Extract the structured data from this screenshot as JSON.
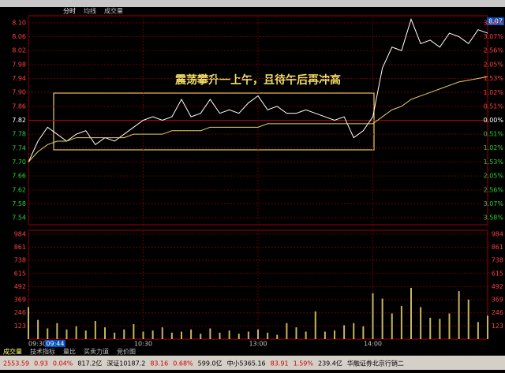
{
  "header": {
    "tabs": [
      "分时",
      "均线",
      "成交量"
    ]
  },
  "chart_data": [
    {
      "type": "line",
      "x": [
        0,
        5,
        10,
        15,
        20,
        25,
        30,
        35,
        40,
        45,
        50,
        55,
        60,
        65,
        70,
        75,
        80,
        85,
        90,
        95,
        100,
        105,
        110,
        115,
        120,
        125,
        130,
        135,
        140,
        145,
        150,
        155,
        160,
        165,
        170,
        175,
        180,
        185,
        190,
        195,
        200,
        205,
        210,
        215,
        220,
        225,
        230,
        235,
        240
      ],
      "series": [
        {
          "color": "#ffffff",
          "values": [
            7.7,
            7.76,
            7.8,
            7.78,
            7.76,
            7.78,
            7.79,
            7.75,
            7.77,
            7.76,
            7.78,
            7.8,
            7.82,
            7.83,
            7.82,
            7.83,
            7.88,
            7.83,
            7.84,
            7.88,
            7.84,
            7.85,
            7.84,
            7.87,
            7.89,
            7.85,
            7.86,
            7.84,
            7.84,
            7.85,
            7.84,
            7.83,
            7.82,
            7.83,
            7.77,
            7.79,
            7.83,
            7.97,
            8.03,
            8.02,
            8.11,
            8.04,
            8.05,
            8.03,
            8.07,
            8.06,
            8.04,
            8.08,
            8.07
          ]
        },
        {
          "color": "#e8d060",
          "values": [
            7.7,
            7.73,
            7.75,
            7.76,
            7.76,
            7.77,
            7.77,
            7.77,
            7.77,
            7.77,
            7.77,
            7.78,
            7.78,
            7.78,
            7.78,
            7.79,
            7.79,
            7.79,
            7.79,
            7.8,
            7.8,
            7.8,
            7.8,
            7.8,
            7.8,
            7.81,
            7.81,
            7.81,
            7.81,
            7.81,
            7.81,
            7.81,
            7.81,
            7.81,
            7.81,
            7.81,
            7.81,
            7.83,
            7.85,
            7.86,
            7.88,
            7.89,
            7.9,
            7.91,
            7.92,
            7.93,
            7.935,
            7.94,
            7.945
          ]
        }
      ],
      "xlim": [
        0,
        240
      ],
      "ylim": [
        7.52,
        8.12
      ],
      "yticks": [
        {
          "value": 8.1,
          "label": "8.10"
        },
        8.06,
        8.02,
        7.98,
        7.94,
        {
          "value": 7.9,
          "label": "7.90"
        },
        7.86,
        7.82,
        7.78,
        7.74,
        {
          "value": 7.7,
          "label": "7.70"
        },
        7.66,
        7.62,
        7.58,
        7.54
      ],
      "base": 7.82,
      "y2lim": [
        -3.84,
        3.84
      ],
      "y2ticks": [
        {
          "value": 3.58,
          "label": "3.58%"
        },
        {
          "value": 3.07,
          "label": "3.07%"
        },
        {
          "value": 2.56,
          "label": "2.56%"
        },
        {
          "value": 2.05,
          "label": "2.05%"
        },
        {
          "value": 1.53,
          "label": "1.53%"
        },
        {
          "value": 1.02,
          "label": "1.02%"
        },
        {
          "value": 0.51,
          "label": "0.51%"
        },
        {
          "value": 0,
          "label": "0.00%"
        },
        {
          "value": -0.51,
          "label": "0.51%"
        },
        {
          "value": -1.02,
          "label": "1.02%"
        },
        {
          "value": -1.53,
          "label": "1.53%"
        },
        {
          "value": -2.05,
          "label": "2.05%"
        },
        {
          "value": -2.56,
          "label": "2.56%"
        },
        {
          "value": -3.07,
          "label": "3.07%"
        },
        {
          "value": -3.58,
          "label": "3.58%"
        }
      ],
      "last_price": 8.07,
      "annotation": "震荡攀升一上午，且待午后再冲高",
      "grid": true
    },
    {
      "type": "bar",
      "x": [
        0,
        5,
        10,
        15,
        20,
        25,
        30,
        35,
        40,
        45,
        50,
        55,
        60,
        65,
        70,
        75,
        80,
        85,
        90,
        95,
        100,
        105,
        110,
        115,
        120,
        125,
        130,
        135,
        140,
        145,
        150,
        155,
        160,
        165,
        170,
        175,
        180,
        185,
        190,
        195,
        200,
        205,
        210,
        215,
        220,
        225,
        230,
        235,
        240
      ],
      "values": [
        300,
        180,
        100,
        150,
        90,
        120,
        80,
        170,
        110,
        60,
        90,
        140,
        70,
        80,
        110,
        60,
        70,
        90,
        50,
        100,
        60,
        80,
        50,
        70,
        90,
        60,
        40,
        150,
        110,
        70,
        260,
        70,
        80,
        130,
        150,
        120,
        430,
        380,
        240,
        310,
        480,
        300,
        200,
        190,
        240,
        450,
        370,
        160,
        220
      ],
      "color": "#c8b560",
      "xlim": [
        0,
        240
      ],
      "xticks": [
        {
          "value": 0,
          "label": "09:30"
        },
        {
          "value": 60,
          "label": "10:30"
        },
        {
          "value": 120,
          "label": "13:00"
        },
        {
          "value": 180,
          "label": "14:00"
        }
      ],
      "cursor": {
        "value": 14,
        "label": "09:44"
      },
      "ylim": [
        0,
        1020
      ],
      "yticks": [
        984,
        861,
        738,
        615,
        492,
        369,
        246,
        123
      ],
      "grid": true
    }
  ],
  "bottom_tabs": [
    "成交量",
    "技术指标",
    "量比",
    "买卖力道",
    "竞价图"
  ],
  "status_bar": [
    "2553.59",
    "0.93",
    "0.04%",
    "817.2亿",
    "深证10187.2",
    "83.16",
    "0.68%",
    "599.0亿",
    "中小5365.16",
    "83.91",
    "1.59%",
    "239.4亿",
    "华融证券北京行销二"
  ]
}
